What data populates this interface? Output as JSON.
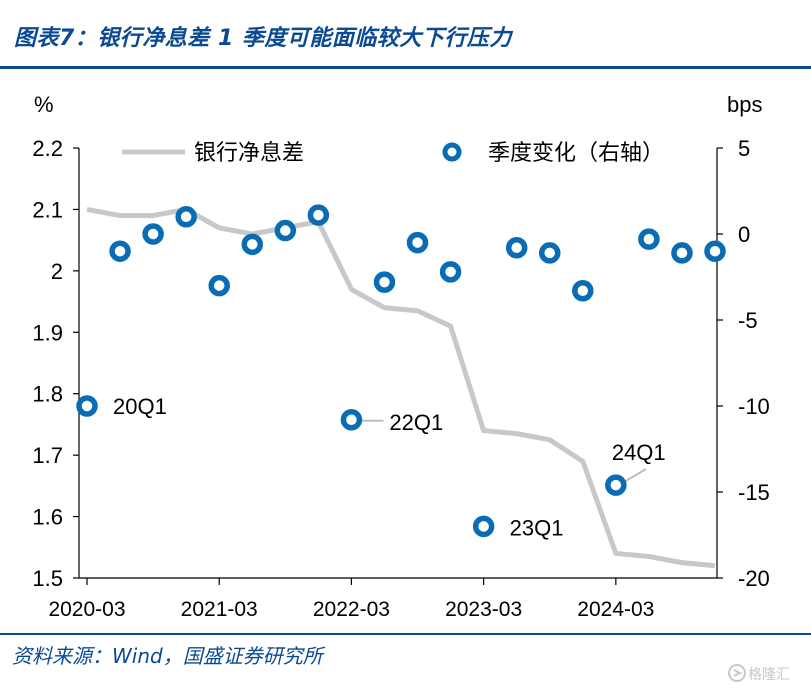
{
  "header": {
    "title": "图表7：银行净息差 1 季度可能面临较大下行压力"
  },
  "footer": {
    "source": "资料来源：Wind，国盛证券研究所"
  },
  "watermark": {
    "text": "格隆汇"
  },
  "chart_data": {
    "type": "line",
    "x": [
      "2020-03",
      "2020-06",
      "2020-09",
      "2020-12",
      "2021-03",
      "2021-06",
      "2021-09",
      "2021-12",
      "2022-03",
      "2022-06",
      "2022-09",
      "2022-12",
      "2023-03",
      "2023-06",
      "2023-09",
      "2023-12",
      "2024-03",
      "2024-06",
      "2024-09",
      "2024-12"
    ],
    "x_tick_labels": [
      "2020-03",
      "2021-03",
      "2022-03",
      "2023-03",
      "2024-03"
    ],
    "y_left": {
      "unit": "%",
      "ylim": [
        1.5,
        2.2
      ],
      "ticks": [
        "2.2",
        "2.1",
        "2",
        "1.9",
        "1.8",
        "1.7",
        "1.6",
        "1.5"
      ]
    },
    "y_right": {
      "unit": "bps",
      "ylim": [
        -20,
        5
      ],
      "ticks": [
        "5",
        "0",
        "-5",
        "-10",
        "-15",
        "-20"
      ]
    },
    "series": [
      {
        "name": "银行净息差",
        "axis": "left",
        "kind": "line",
        "color": "#c8c8c8",
        "values": [
          2.1,
          2.09,
          2.09,
          2.1,
          2.07,
          2.06,
          2.07,
          2.08,
          1.97,
          1.94,
          1.935,
          1.91,
          1.74,
          1.735,
          1.725,
          1.69,
          1.54,
          1.535,
          1.525,
          1.52
        ]
      },
      {
        "name": "季度变化（右轴）",
        "axis": "right",
        "kind": "scatter",
        "color": "#0a6cb5",
        "values": [
          -10,
          -1,
          0,
          1,
          -3,
          -0.6,
          0.2,
          1.1,
          -10.8,
          -2.8,
          -0.5,
          -2.2,
          -17,
          -0.8,
          -1.1,
          -3.3,
          -14.6,
          -0.3,
          -1.1,
          -1
        ]
      }
    ],
    "annotations": [
      {
        "label": "20Q1",
        "index": 0
      },
      {
        "label": "22Q1",
        "index": 8
      },
      {
        "label": "23Q1",
        "index": 12
      },
      {
        "label": "24Q1",
        "index": 16
      }
    ]
  }
}
